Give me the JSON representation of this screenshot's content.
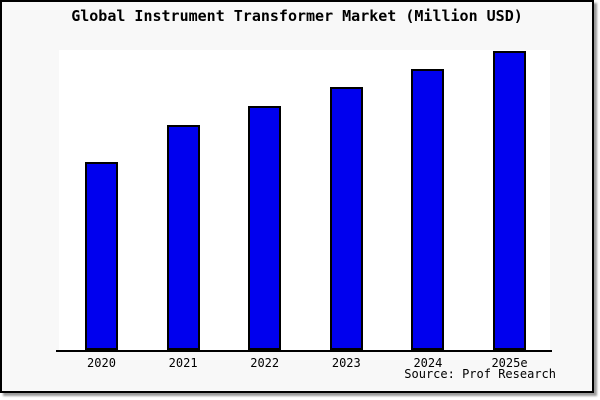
{
  "title": "Global Instrument Transformer Market (Million USD)",
  "source_note": "Source: Prof Research",
  "colors": {
    "bar_fill": "#0000ee",
    "bar_border": "#000000",
    "canvas_background": "#f8f8f8",
    "plot_background": "#ffffff",
    "axis": "#000000",
    "frame_border": "#000000"
  },
  "chart_data": {
    "type": "bar",
    "title": "Global Instrument Transformer Market (Million USD)",
    "categories": [
      "2020",
      "2021",
      "2022",
      "2023",
      "2024",
      "2025e"
    ],
    "values": [
      62.9,
      75.3,
      81.6,
      88.0,
      94.0,
      100.0
    ],
    "xlabel": "",
    "ylabel": "",
    "ylim": [
      0,
      100
    ],
    "y_axis_labels": "none",
    "gridlines": false,
    "legend": "none",
    "annotation": "Source: Prof Research",
    "value_units": "relative index, tallest bar (2025e) = 100; y-axis is unlabeled in the image"
  }
}
